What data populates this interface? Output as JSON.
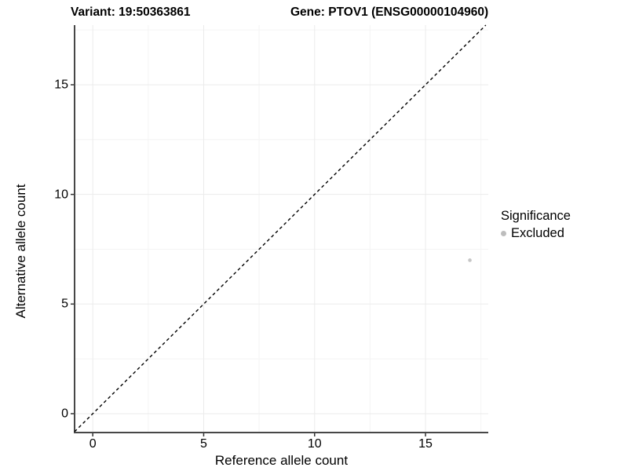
{
  "page": {
    "background": "#ffffff"
  },
  "header": {
    "variant_title": "Variant: 19:50363861",
    "gene_title": "Gene: PTOV1 (ENSG00000104960)"
  },
  "chart_data": {
    "type": "scatter",
    "xlabel": "Reference allele count",
    "ylabel": "Alternative allele count",
    "xlim": [
      -0.82,
      17.83
    ],
    "ylim": [
      -0.86,
      17.72
    ],
    "xticks": [
      0,
      5,
      10,
      15
    ],
    "yticks": [
      0,
      5,
      10,
      15
    ],
    "minor_xticks": [
      2.5,
      7.5,
      12.5,
      17.5
    ],
    "minor_yticks": [
      2.5,
      7.5,
      12.5,
      17.5
    ],
    "grid": "major+minor",
    "points": [
      {
        "x": 17,
        "y": 7,
        "significance": "Excluded"
      }
    ],
    "reference_line": {
      "equation": "y = x",
      "style": "dashed",
      "color": "#000000"
    },
    "legend": {
      "title": "Significance",
      "position": "right",
      "entries": [
        {
          "label": "Excluded",
          "color": "#bdbdbd"
        }
      ]
    },
    "colors": {
      "point": "#c6c6c6",
      "grid_major": "#ebebeb",
      "grid_minor": "#f4f4f4",
      "axis_line": "#474747",
      "tick": "#333333",
      "text": "#000000"
    }
  }
}
